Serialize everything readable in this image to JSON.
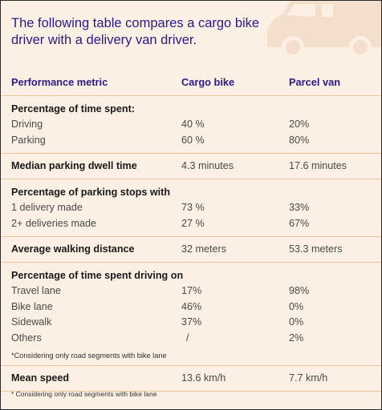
{
  "intro": "The following table compares a cargo bike driver with a delivery van driver.",
  "headers": [
    "Performance metric",
    "Cargo bike",
    "Parcel van"
  ],
  "sections": [
    {
      "title": "Percentage of time spent:",
      "rows": [
        [
          "Driving",
          "40 %",
          "20%"
        ],
        [
          "Parking",
          "60 %",
          "80%"
        ]
      ]
    },
    {
      "single": [
        "Median parking dwell time",
        "4.3 minutes",
        "17.6 minutes"
      ]
    },
    {
      "title": "Percentage of parking stops with",
      "rows": [
        [
          "1 delivery made",
          "73 %",
          "33%"
        ],
        [
          "2+ deliveries made",
          "27 %",
          "67%"
        ]
      ]
    },
    {
      "single": [
        "Average walking distance",
        "32 meters",
        "53.3 meters"
      ]
    },
    {
      "title": "Percentage of time spent driving on",
      "rows": [
        [
          "Travel lane",
          "17%",
          "98%"
        ],
        [
          "Bike lane",
          "46%",
          "0%"
        ],
        [
          "Sidewalk",
          "37%",
          "0%"
        ],
        [
          "Others",
          "/",
          "2%"
        ]
      ],
      "note": "*Considering only road segments with bike lane"
    },
    {
      "single": [
        "Mean speed",
        "13.6 km/h",
        "7.7 km/h"
      ]
    }
  ],
  "footnote": "* Considering only road segments with bike lane",
  "colors": {
    "background": "#fcefe3",
    "heading": "#2a1b8a",
    "separator": "#e6c5a1",
    "van_watermark": "#f3dfcc"
  },
  "icons": {
    "watermark": "delivery-van-icon"
  }
}
